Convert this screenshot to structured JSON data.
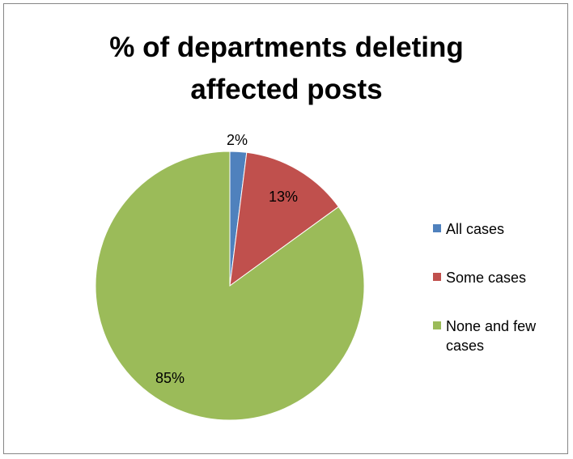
{
  "chart_data": {
    "type": "pie",
    "title": "% of departments deleting affected posts",
    "title_lines": [
      "% of departments deleting",
      "affected posts"
    ],
    "slices": [
      {
        "label": "All cases",
        "value": 2,
        "display": "2%",
        "color": "#4F81BD"
      },
      {
        "label": "Some cases",
        "value": 13,
        "display": "13%",
        "color": "#C0504D"
      },
      {
        "label": "None and few cases",
        "value": 85,
        "display": "85%",
        "color": "#9BBB59"
      }
    ],
    "legend_position": "right"
  }
}
